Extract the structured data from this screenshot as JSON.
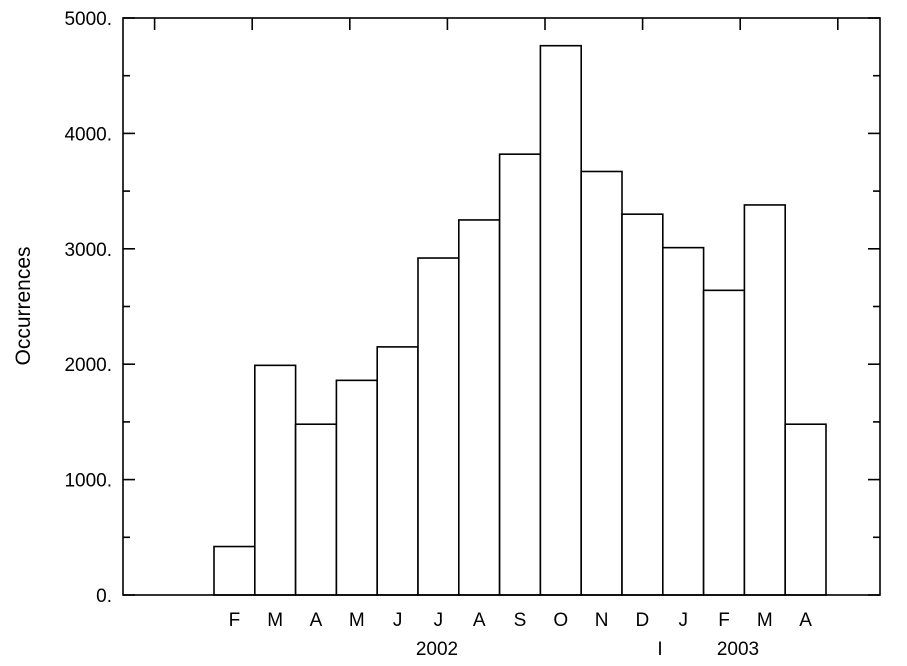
{
  "chart_data": {
    "type": "bar",
    "categories": [
      "F",
      "M",
      "A",
      "M",
      "J",
      "J",
      "A",
      "S",
      "O",
      "N",
      "D",
      "J",
      "F",
      "M",
      "A"
    ],
    "values": [
      420,
      1990,
      1480,
      1860,
      2150,
      2920,
      3250,
      3820,
      4760,
      3670,
      3300,
      3010,
      2640,
      3380,
      1480
    ],
    "year_labels": [
      "2002",
      "2003"
    ],
    "year_separator": "I",
    "xlabel": "",
    "ylabel": "Occurrences",
    "ylim": [
      0,
      5000
    ],
    "yticks": [
      "0.",
      "1000.",
      "2000.",
      "3000.",
      "4000.",
      "5000."
    ],
    "grid": false,
    "legend": "none"
  }
}
